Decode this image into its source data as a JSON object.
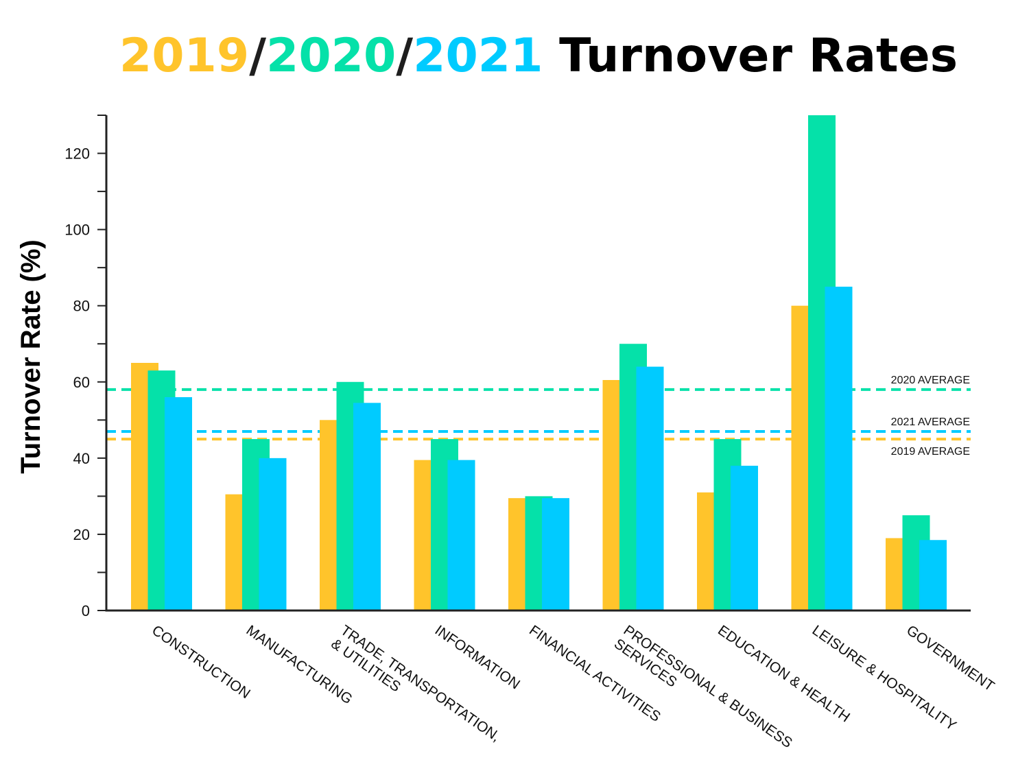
{
  "chart_data": {
    "type": "bar",
    "title_parts": [
      {
        "text": "2019",
        "color": "#FFC42B"
      },
      {
        "text": "/",
        "color": "#1e1e1e"
      },
      {
        "text": "2020",
        "color": "#05E1A9"
      },
      {
        "text": "/",
        "color": "#1e1e1e"
      },
      {
        "text": "2021",
        "color": "#00CBFF"
      },
      {
        "text": " Turnover Rates",
        "color": "#000000"
      }
    ],
    "ylabel": "Turnover Rate (%)",
    "xlabel": "",
    "ylim": [
      0,
      130
    ],
    "yticks": [
      0,
      20,
      40,
      60,
      80,
      100,
      120
    ],
    "grid": false,
    "legend": "none",
    "categories": [
      [
        "CONSTRUCTION"
      ],
      [
        "MANUFACTURING"
      ],
      [
        "TRADE, TRANSPORTATION,",
        "& UTILITIES"
      ],
      [
        "INFORMATION"
      ],
      [
        "FINANCIAL ACTIVITIES"
      ],
      [
        "PROFESSIONAL & BUSINESS",
        "SERVICES"
      ],
      [
        "EDUCATION & HEALTH"
      ],
      [
        "LEISURE & HOSPITALITY"
      ],
      [
        "GOVERNMENT"
      ]
    ],
    "series": [
      {
        "color": "#FFC42B",
        "values": [
          65,
          30.5,
          50,
          39.5,
          29.5,
          60.5,
          31,
          80,
          19
        ]
      },
      {
        "color": "#05E1A9",
        "values": [
          63,
          45,
          60,
          45,
          30,
          70,
          45,
          130,
          25
        ]
      },
      {
        "color": "#00CBFF",
        "values": [
          56,
          40,
          54.5,
          39.5,
          29.5,
          64,
          38,
          85,
          18.5
        ]
      }
    ],
    "reference_lines": [
      {
        "label": "2020 AVERAGE",
        "value": 58,
        "color": "#05E1A9"
      },
      {
        "label": "2021 AVERAGE",
        "value": 47,
        "color": "#00CBFF"
      },
      {
        "label": "2019 AVERAGE",
        "value": 45,
        "color": "#FFC42B"
      }
    ]
  }
}
